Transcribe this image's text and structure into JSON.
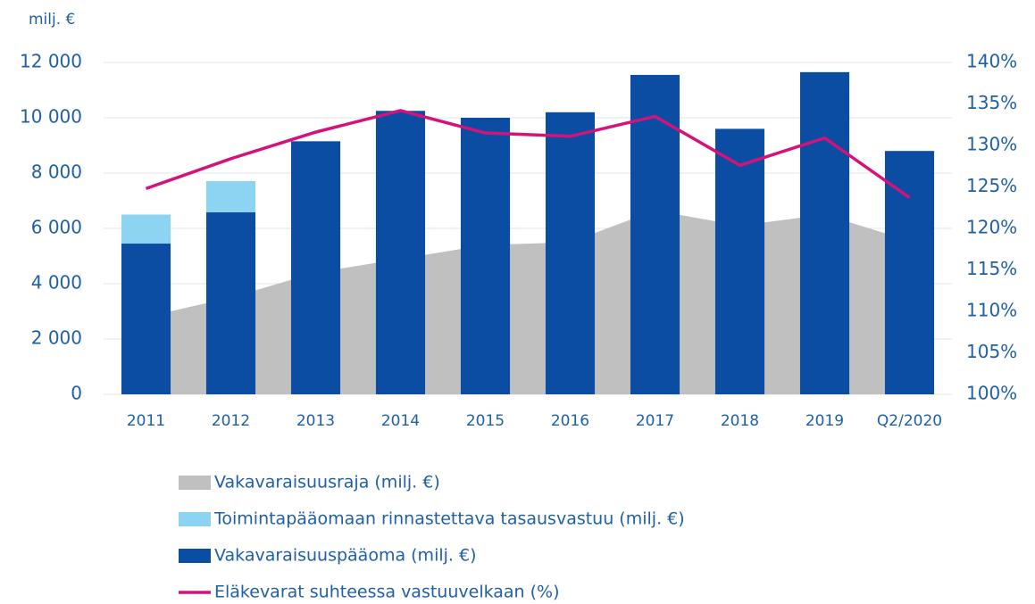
{
  "chart_data": {
    "type": "bar",
    "unit_label": "milj. €",
    "categories": [
      "2011",
      "2012",
      "2013",
      "2014",
      "2015",
      "2016",
      "2017",
      "2018",
      "2019",
      "Q2/2020"
    ],
    "series": [
      {
        "name": "Vakavaraisuusraja (milj. €)",
        "type": "area",
        "color": "#c0c0c0",
        "values": [
          2800,
          3500,
          4400,
          4900,
          5400,
          5500,
          6650,
          6100,
          6500,
          5550
        ]
      },
      {
        "name": "Toimintapääomaan rinnastettava tasausvastuu (milj. €)",
        "type": "bar",
        "stack": "top",
        "color": "#8dd4f2",
        "values": [
          1050,
          1130,
          null,
          null,
          null,
          null,
          null,
          null,
          null,
          null
        ]
      },
      {
        "name": "Vakavaraisuuspääoma (milj. €)",
        "type": "bar",
        "stack": "base",
        "color": "#0a4da2",
        "values": [
          5450,
          6580,
          9150,
          10250,
          10000,
          10200,
          11550,
          9600,
          11650,
          8800
        ]
      },
      {
        "name": "Eläkevarat suhteessa vastuuvelkaan (%)",
        "type": "line",
        "axis": "y2",
        "color": "#d4127a",
        "values": [
          124.8,
          128.4,
          131.6,
          134.2,
          131.5,
          131.1,
          133.5,
          127.6,
          130.9,
          123.7
        ]
      }
    ],
    "ylim": [
      0,
      12000
    ],
    "yticks": [
      0,
      {
        "value": 2000,
        "label": "2 000"
      },
      {
        "value": 4000,
        "label": "4 000"
      },
      {
        "value": 6000,
        "label": "6 000"
      },
      {
        "value": 8000,
        "label": "8 000"
      },
      {
        "value": 10000,
        "label": "10 000"
      },
      {
        "value": 12000,
        "label": "12 000"
      }
    ],
    "y2lim": [
      100,
      140
    ],
    "y2ticks": [
      {
        "value": 100,
        "label": "100%"
      },
      {
        "value": 105,
        "label": "105%"
      },
      {
        "value": 110,
        "label": "110%"
      },
      {
        "value": 115,
        "label": "115%"
      },
      {
        "value": 120,
        "label": "120%"
      },
      {
        "value": 125,
        "label": "125%"
      },
      {
        "value": 130,
        "label": "130%"
      },
      {
        "value": 135,
        "label": "135%"
      },
      {
        "value": 140,
        "label": "140%"
      }
    ],
    "grid": true,
    "legend": "bottom"
  }
}
